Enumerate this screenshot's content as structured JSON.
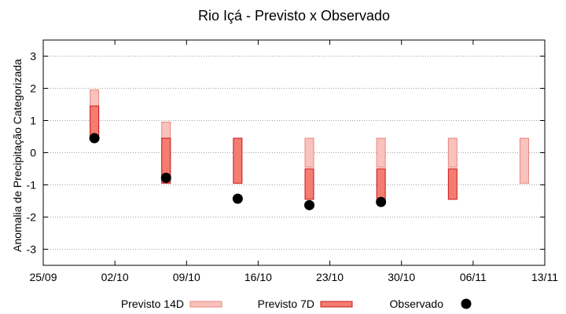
{
  "chart_data": {
    "type": "range-bar",
    "title": "Rio Içá - Previsto x Observado",
    "xlabel": "",
    "ylabel": "Anomalia de Precipitação Categorizada",
    "ylim": [
      -3.5,
      3.5
    ],
    "yticks": [
      3,
      2,
      1,
      0,
      -1,
      -2,
      -3
    ],
    "x_tick_labels": [
      "25/09",
      "02/10",
      "09/10",
      "16/10",
      "23/10",
      "30/10",
      "06/11",
      "13/11"
    ],
    "x_ticks": [
      "2025-09-25",
      "2025-10-02",
      "2025-10-09",
      "2025-10-16",
      "2025-10-23",
      "2025-10-30",
      "2025-11-06",
      "2025-11-13"
    ],
    "xlim": [
      "2025-09-25",
      "2025-11-13"
    ],
    "grid": "horizontal dotted",
    "legend": "bottom",
    "colors": {
      "previsto_14d_fill": "#f9c2bc",
      "previsto_14d_stroke": "#e8867c",
      "previsto_7d_fill": "#f47c70",
      "previsto_7d_stroke": "#c8161c",
      "observado": "#000000",
      "grid": "#a0a0a0"
    },
    "series": [
      {
        "name": "Previsto 14D",
        "kind": "range",
        "points": [
          {
            "x": "2025-09-30",
            "low": 0.5,
            "high": 1.95
          },
          {
            "x": "2025-10-07",
            "low": -0.95,
            "high": 0.95
          },
          {
            "x": "2025-10-21",
            "low": -0.45,
            "high": 0.45
          },
          {
            "x": "2025-10-28",
            "low": -0.45,
            "high": 0.45
          },
          {
            "x": "2025-11-04",
            "low": -0.45,
            "high": 0.45
          },
          {
            "x": "2025-11-11",
            "low": -0.95,
            "high": 0.45
          }
        ]
      },
      {
        "name": "Previsto 7D",
        "kind": "range",
        "points": [
          {
            "x": "2025-09-30",
            "low": 0.5,
            "high": 1.45
          },
          {
            "x": "2025-10-07",
            "low": -0.95,
            "high": 0.45
          },
          {
            "x": "2025-10-14",
            "low": -0.95,
            "high": 0.45
          },
          {
            "x": "2025-10-21",
            "low": -1.45,
            "high": -0.5
          },
          {
            "x": "2025-10-28",
            "low": -1.45,
            "high": -0.5
          },
          {
            "x": "2025-11-04",
            "low": -1.45,
            "high": -0.5
          }
        ]
      },
      {
        "name": "Observado",
        "kind": "point",
        "points": [
          {
            "x": "2025-09-30",
            "y": 0.45
          },
          {
            "x": "2025-10-07",
            "y": -0.78
          },
          {
            "x": "2025-10-14",
            "y": -1.43
          },
          {
            "x": "2025-10-21",
            "y": -1.63
          },
          {
            "x": "2025-10-28",
            "y": -1.53
          }
        ]
      }
    ]
  }
}
